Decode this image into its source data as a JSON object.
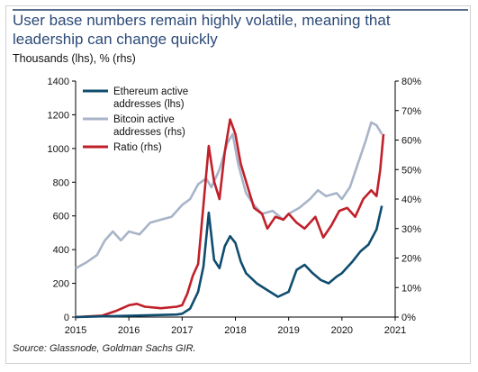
{
  "title": "User base numbers remain highly volatile, meaning that leadership can change quickly",
  "subtitle": "Thousands (lhs), % (rhs)",
  "source": "Source: Glassnode, Goldman Sachs GIR.",
  "chart_data": {
    "type": "line",
    "x_ticks": [
      "2015",
      "2016",
      "2017",
      "2018",
      "2019",
      "2020",
      "2021"
    ],
    "xlim": [
      2015,
      2021
    ],
    "y_left": {
      "lim": [
        0,
        1400
      ],
      "ticks": [
        "0",
        "200",
        "400",
        "600",
        "800",
        "1000",
        "1200",
        "1400"
      ]
    },
    "y_right": {
      "lim": [
        0,
        80
      ],
      "ticks": [
        "0%",
        "10%",
        "20%",
        "30%",
        "40%",
        "50%",
        "60%",
        "70%",
        "80%"
      ]
    },
    "legend_position": "top-left",
    "series": [
      {
        "name": "Bitcoin active addresses (rhs)",
        "axis": "right",
        "color": "#a8b4c8",
        "points": [
          [
            2015.0,
            16.5
          ],
          [
            2015.2,
            18.5
          ],
          [
            2015.4,
            21
          ],
          [
            2015.55,
            26
          ],
          [
            2015.7,
            29
          ],
          [
            2015.85,
            26
          ],
          [
            2016.0,
            29
          ],
          [
            2016.2,
            28
          ],
          [
            2016.4,
            32
          ],
          [
            2016.6,
            33
          ],
          [
            2016.8,
            34
          ],
          [
            2017.0,
            38
          ],
          [
            2017.15,
            40
          ],
          [
            2017.3,
            45
          ],
          [
            2017.45,
            47
          ],
          [
            2017.55,
            44
          ],
          [
            2017.7,
            50
          ],
          [
            2017.85,
            59
          ],
          [
            2017.95,
            62
          ],
          [
            2018.05,
            52
          ],
          [
            2018.2,
            42
          ],
          [
            2018.35,
            38
          ],
          [
            2018.5,
            35
          ],
          [
            2018.7,
            36
          ],
          [
            2018.9,
            33
          ],
          [
            2019.0,
            35
          ],
          [
            2019.2,
            37
          ],
          [
            2019.4,
            40
          ],
          [
            2019.55,
            43
          ],
          [
            2019.7,
            41
          ],
          [
            2019.9,
            42
          ],
          [
            2020.0,
            40
          ],
          [
            2020.15,
            44
          ],
          [
            2020.3,
            52
          ],
          [
            2020.45,
            60
          ],
          [
            2020.55,
            66
          ],
          [
            2020.65,
            65
          ],
          [
            2020.75,
            62
          ]
        ]
      },
      {
        "name": "Ratio (rhs)",
        "axis": "right",
        "color": "#c0202a",
        "points": [
          [
            2015.0,
            0
          ],
          [
            2015.5,
            0.5
          ],
          [
            2015.75,
            2
          ],
          [
            2016.0,
            4
          ],
          [
            2016.15,
            4.5
          ],
          [
            2016.3,
            3.5
          ],
          [
            2016.6,
            3
          ],
          [
            2016.9,
            3.5
          ],
          [
            2017.0,
            4
          ],
          [
            2017.1,
            8
          ],
          [
            2017.2,
            14
          ],
          [
            2017.3,
            18
          ],
          [
            2017.4,
            38
          ],
          [
            2017.5,
            58
          ],
          [
            2017.6,
            46
          ],
          [
            2017.7,
            40
          ],
          [
            2017.8,
            56
          ],
          [
            2017.9,
            67
          ],
          [
            2018.0,
            62
          ],
          [
            2018.1,
            52
          ],
          [
            2018.2,
            46
          ],
          [
            2018.35,
            37
          ],
          [
            2018.5,
            35
          ],
          [
            2018.6,
            30
          ],
          [
            2018.75,
            34
          ],
          [
            2018.9,
            33
          ],
          [
            2019.0,
            35
          ],
          [
            2019.15,
            32
          ],
          [
            2019.3,
            30
          ],
          [
            2019.5,
            34
          ],
          [
            2019.65,
            27
          ],
          [
            2019.8,
            31
          ],
          [
            2019.95,
            36
          ],
          [
            2020.1,
            37
          ],
          [
            2020.25,
            34
          ],
          [
            2020.4,
            40
          ],
          [
            2020.55,
            43
          ],
          [
            2020.65,
            41
          ],
          [
            2020.72,
            50
          ],
          [
            2020.78,
            62
          ]
        ]
      },
      {
        "name": "Ethereum active addresses (lhs)",
        "axis": "left",
        "color": "#0f4c6e",
        "points": [
          [
            2015.0,
            0
          ],
          [
            2015.6,
            5
          ],
          [
            2016.0,
            8
          ],
          [
            2016.5,
            12
          ],
          [
            2016.9,
            15
          ],
          [
            2017.0,
            20
          ],
          [
            2017.15,
            50
          ],
          [
            2017.3,
            150
          ],
          [
            2017.4,
            300
          ],
          [
            2017.5,
            620
          ],
          [
            2017.6,
            340
          ],
          [
            2017.7,
            290
          ],
          [
            2017.8,
            420
          ],
          [
            2017.9,
            480
          ],
          [
            2018.0,
            440
          ],
          [
            2018.1,
            330
          ],
          [
            2018.2,
            260
          ],
          [
            2018.4,
            200
          ],
          [
            2018.6,
            160
          ],
          [
            2018.8,
            120
          ],
          [
            2019.0,
            150
          ],
          [
            2019.15,
            280
          ],
          [
            2019.3,
            310
          ],
          [
            2019.45,
            260
          ],
          [
            2019.6,
            220
          ],
          [
            2019.75,
            200
          ],
          [
            2019.9,
            240
          ],
          [
            2020.0,
            260
          ],
          [
            2020.2,
            330
          ],
          [
            2020.35,
            390
          ],
          [
            2020.5,
            430
          ],
          [
            2020.65,
            520
          ],
          [
            2020.75,
            660
          ]
        ]
      }
    ]
  }
}
